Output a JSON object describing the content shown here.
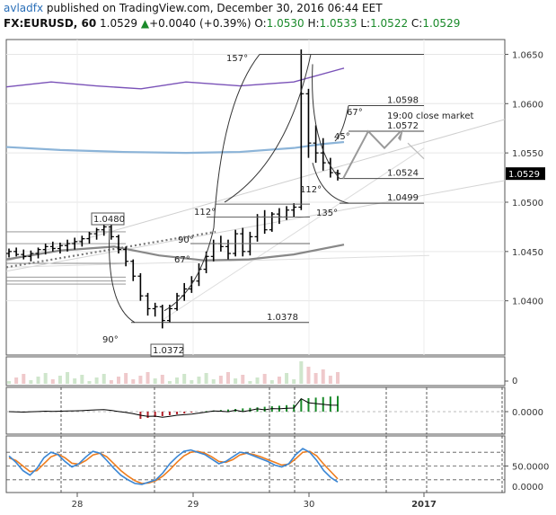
{
  "header": {
    "author": "avladfx",
    "published": "published on TradingView.com, December 30, 2016 06:44 EET",
    "symbol": "FX:EURUSD, 60",
    "price": "1.0529",
    "change": "+0.0040 (+0.39%)",
    "o_label": "O:",
    "o_value": "1.0530",
    "h_label": "H:",
    "h_value": "1.0533",
    "l_label": "L:",
    "l_value": "1.0522",
    "c_label": "C:",
    "c_value": "1.0529"
  },
  "colors": {
    "up": "#1a8a2a",
    "down": "#b3202a",
    "ma_long": "#7a52b8",
    "ma_mid": "#8cb4d8",
    "ma_short": "#888888",
    "stoch_k": "#3a86d4",
    "stoch_d": "#ee7d1e",
    "text_blue": "#2a6fb8"
  },
  "chart_data": [
    {
      "type": "line",
      "panel": "price",
      "ylim": [
        1.0345,
        1.0665
      ],
      "y_ticks": [
        "1.0650",
        "1.0600",
        "1.0550",
        "1.0500",
        "1.0450",
        "1.0400"
      ],
      "x_ticks": [
        "28",
        "29",
        "30",
        "2017"
      ],
      "last_price_label": "1.0529",
      "candles": [
        [
          1.0448,
          1.0453,
          1.0444,
          1.045
        ],
        [
          1.045,
          1.0454,
          1.0445,
          1.0447
        ],
        [
          1.0447,
          1.0452,
          1.0442,
          1.0445
        ],
        [
          1.0445,
          1.0451,
          1.044,
          1.0448
        ],
        [
          1.0448,
          1.0454,
          1.0443,
          1.0452
        ],
        [
          1.0452,
          1.0458,
          1.0447,
          1.0455
        ],
        [
          1.0455,
          1.046,
          1.045,
          1.0453
        ],
        [
          1.0453,
          1.0459,
          1.0448,
          1.0456
        ],
        [
          1.0456,
          1.0462,
          1.045,
          1.0458
        ],
        [
          1.0458,
          1.0464,
          1.0452,
          1.046
        ],
        [
          1.046,
          1.0466,
          1.0455,
          1.0463
        ],
        [
          1.0463,
          1.047,
          1.0458,
          1.0468
        ],
        [
          1.0468,
          1.0474,
          1.0462,
          1.0472
        ],
        [
          1.0472,
          1.048,
          1.0466,
          1.0475
        ],
        [
          1.0475,
          1.0478,
          1.0462,
          1.0465
        ],
        [
          1.0465,
          1.0467,
          1.0448,
          1.0452
        ],
        [
          1.0452,
          1.0455,
          1.0435,
          1.044
        ],
        [
          1.044,
          1.0442,
          1.042,
          1.0425
        ],
        [
          1.0425,
          1.0428,
          1.04,
          1.0405
        ],
        [
          1.0405,
          1.0408,
          1.0385,
          1.0392
        ],
        [
          1.0392,
          1.0398,
          1.0384,
          1.0394
        ],
        [
          1.0394,
          1.0396,
          1.0372,
          1.038
        ],
        [
          1.038,
          1.0396,
          1.0378,
          1.0392
        ],
        [
          1.0392,
          1.0408,
          1.039,
          1.0405
        ],
        [
          1.0405,
          1.0418,
          1.04,
          1.0412
        ],
        [
          1.0412,
          1.0425,
          1.0408,
          1.042
        ],
        [
          1.042,
          1.0438,
          1.0415,
          1.0432
        ],
        [
          1.0432,
          1.045,
          1.0428,
          1.0445
        ],
        [
          1.0445,
          1.0462,
          1.044,
          1.0458
        ],
        [
          1.0458,
          1.0466,
          1.045,
          1.0455
        ],
        [
          1.0455,
          1.0462,
          1.0442,
          1.0448
        ],
        [
          1.0448,
          1.0472,
          1.0445,
          1.0468
        ],
        [
          1.0468,
          1.0474,
          1.0445,
          1.045
        ],
        [
          1.045,
          1.047,
          1.0446,
          1.0465
        ],
        [
          1.0465,
          1.0488,
          1.046,
          1.0485
        ],
        [
          1.0485,
          1.0492,
          1.0468,
          1.0472
        ],
        [
          1.0472,
          1.049,
          1.047,
          1.0488
        ],
        [
          1.0488,
          1.0494,
          1.0478,
          1.0485
        ],
        [
          1.0485,
          1.0496,
          1.0482,
          1.0492
        ],
        [
          1.0492,
          1.0499,
          1.0485,
          1.0495
        ],
        [
          1.0495,
          1.0655,
          1.0492,
          1.061
        ],
        [
          1.061,
          1.0615,
          1.0545,
          1.056
        ],
        [
          1.056,
          1.0578,
          1.054,
          1.055
        ],
        [
          1.055,
          1.0565,
          1.0532,
          1.054
        ],
        [
          1.054,
          1.0545,
          1.0525,
          1.053
        ],
        [
          1.053,
          1.0533,
          1.0522,
          1.0529
        ]
      ],
      "ma_long": [
        [
          0,
          1.0617
        ],
        [
          50,
          1.0622
        ],
        [
          100,
          1.0618
        ],
        [
          150,
          1.0615
        ],
        [
          200,
          1.0622
        ],
        [
          260,
          1.0618
        ],
        [
          320,
          1.0622
        ],
        [
          376,
          1.0636
        ]
      ],
      "ma_mid": [
        [
          0,
          1.0556
        ],
        [
          60,
          1.0553
        ],
        [
          130,
          1.0551
        ],
        [
          200,
          1.055
        ],
        [
          260,
          1.0551
        ],
        [
          320,
          1.0555
        ],
        [
          352,
          1.0559
        ],
        [
          376,
          1.0561
        ]
      ],
      "ma_short": [
        [
          0,
          1.0442
        ],
        [
          60,
          1.0451
        ],
        [
          120,
          1.0455
        ],
        [
          170,
          1.0446
        ],
        [
          220,
          1.0441
        ],
        [
          270,
          1.0442
        ],
        [
          320,
          1.0447
        ],
        [
          376,
          1.0457
        ]
      ],
      "support_lines": [
        1.047,
        1.0458,
        1.0438,
        1.0424,
        1.042,
        1.0417
      ],
      "annotations": {
        "levels": [
          {
            "price": 1.065,
            "x0": 289,
            "x1": 472,
            "label": ""
          },
          {
            "price": 1.0598,
            "x0": 388,
            "x1": 472,
            "label": "1.0598"
          },
          {
            "price": 1.0572,
            "x0": 388,
            "x1": 472,
            "label": "1.0572"
          },
          {
            "price": 1.0524,
            "x0": 378,
            "x1": 472,
            "label": "1.0524"
          },
          {
            "price": 1.0499,
            "x0": 378,
            "x1": 472,
            "label": "1.0499"
          },
          {
            "price": 1.0378,
            "x0": 146,
            "x1": 344,
            "label": "1.0378"
          }
        ],
        "swing_high_label": "1.0480",
        "swing_low_label": "1.0372",
        "angles": [
          "157°",
          "112°",
          "90°",
          "67°",
          "90°",
          "67°",
          "45°",
          "112°",
          "135°"
        ],
        "note": "19:00 close market"
      }
    },
    {
      "type": "bar",
      "panel": "volume",
      "y_ticks": [
        "0"
      ]
    },
    {
      "type": "bar",
      "panel": "oscillator",
      "y_ticks": [
        "0.0000"
      ]
    },
    {
      "type": "line",
      "panel": "stochastic",
      "ylim": [
        0,
        100
      ],
      "y_ticks": [
        "50.0000",
        "0.0000"
      ],
      "k": [
        72,
        58,
        40,
        30,
        45,
        68,
        80,
        75,
        60,
        48,
        55,
        70,
        82,
        78,
        62,
        45,
        30,
        20,
        12,
        10,
        15,
        20,
        35,
        55,
        70,
        82,
        85,
        80,
        75,
        65,
        55,
        60,
        70,
        80,
        78,
        72,
        66,
        60,
        52,
        48,
        55,
        75,
        88,
        80,
        62,
        40,
        25,
        15
      ],
      "d": [
        68,
        62,
        50,
        38,
        40,
        55,
        70,
        76,
        68,
        56,
        54,
        62,
        74,
        78,
        70,
        55,
        40,
        28,
        18,
        12,
        13,
        18,
        28,
        42,
        58,
        72,
        80,
        82,
        78,
        70,
        60,
        58,
        64,
        74,
        78,
        75,
        70,
        64,
        58,
        52,
        54,
        66,
        80,
        82,
        72,
        54,
        38,
        22
      ]
    }
  ]
}
